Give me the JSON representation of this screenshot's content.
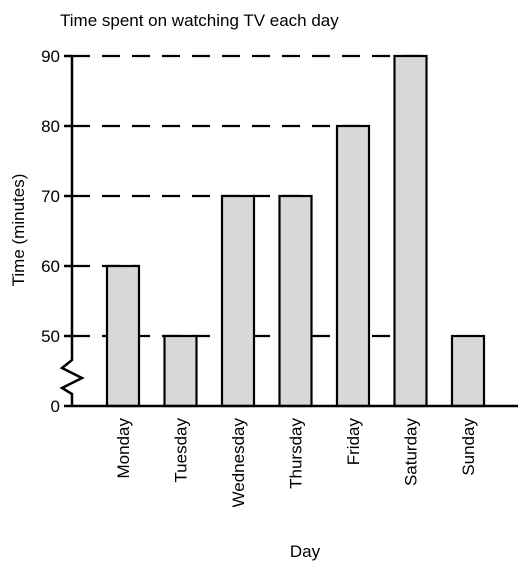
{
  "chart_data": {
    "type": "bar",
    "title": "Time spent on watching TV each day",
    "xlabel": "Day",
    "ylabel": "Time (minutes)",
    "categories": [
      "Monday",
      "Tuesday",
      "Wednesday",
      "Thursday",
      "Friday",
      "Saturday",
      "Sunday"
    ],
    "values": [
      60,
      50,
      70,
      70,
      80,
      90,
      50
    ],
    "y_ticks": [
      "0",
      "50",
      "60",
      "70",
      "80",
      "90"
    ],
    "ylim": [
      0,
      90
    ],
    "axis_break": true,
    "grid": "dashed reference lines at each bar top",
    "colors": {
      "bar_fill": "#d8d8d8",
      "bar_stroke": "#000000",
      "axis": "#000000"
    }
  }
}
